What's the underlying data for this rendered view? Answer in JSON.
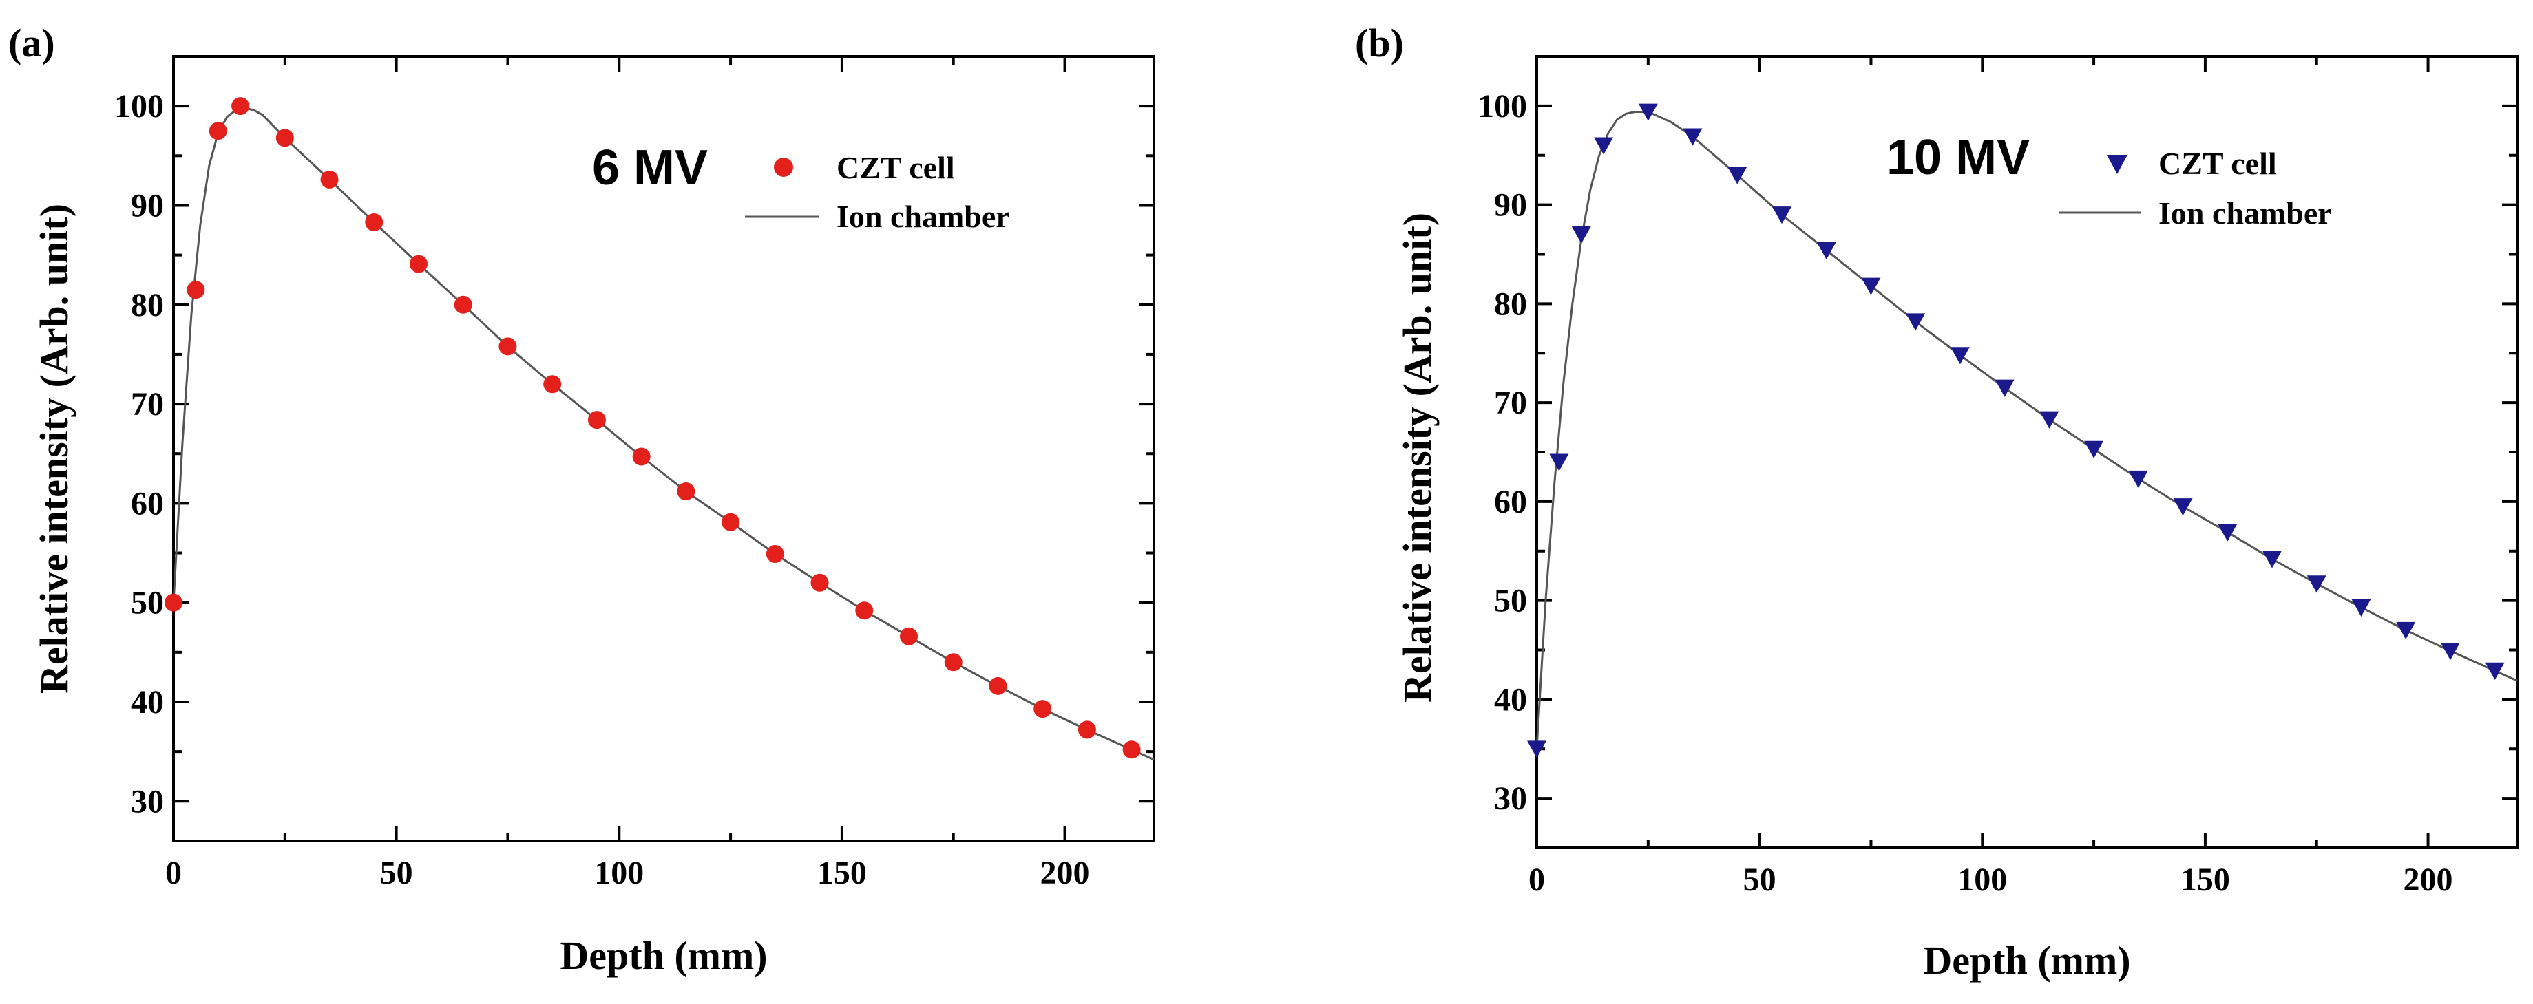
{
  "chart_data": [
    {
      "type": "scatter",
      "panel_label": "(a)",
      "annotation": "6 MV",
      "xlabel": "Depth (mm)",
      "ylabel": "Relative intensity (Arb. unit)",
      "xlim": [
        0,
        220
      ],
      "ylim": [
        26,
        105
      ],
      "xticks": [
        0,
        50,
        100,
        150,
        200
      ],
      "yticks": [
        30,
        40,
        50,
        60,
        70,
        80,
        90,
        100
      ],
      "grid": false,
      "legend_position": "top-right",
      "series": [
        {
          "name": "CZT cell",
          "kind": "markers",
          "marker": "circle",
          "color": "#e3201b",
          "x": [
            0,
            5,
            10,
            15,
            25,
            35,
            45,
            55,
            65,
            75,
            85,
            95,
            105,
            115,
            125,
            135,
            145,
            155,
            165,
            175,
            185,
            195,
            205,
            215
          ],
          "y": [
            50,
            81.5,
            97.5,
            100,
            96.8,
            92.6,
            88.3,
            84.1,
            80,
            75.8,
            72,
            68.4,
            64.7,
            61.2,
            58.1,
            54.9,
            52,
            49.2,
            46.6,
            44,
            41.6,
            39.3,
            37.2,
            35.2
          ]
        },
        {
          "name": "Ion chamber",
          "kind": "line",
          "color": "#555555",
          "x": [
            0,
            2,
            4,
            6,
            8,
            10,
            12,
            14,
            16,
            18,
            20,
            25,
            35,
            45,
            55,
            65,
            75,
            85,
            95,
            105,
            115,
            125,
            135,
            145,
            155,
            165,
            175,
            185,
            195,
            205,
            215,
            220
          ],
          "y": [
            50,
            66,
            79,
            88,
            94,
            97.3,
            98.9,
            99.6,
            99.8,
            99.6,
            99.1,
            96.8,
            92.6,
            88.3,
            84.1,
            80,
            75.8,
            72,
            68.4,
            64.7,
            61.2,
            58.1,
            54.9,
            52,
            49.2,
            46.6,
            44,
            41.6,
            39.3,
            37.2,
            35.2,
            34.2
          ]
        }
      ]
    },
    {
      "type": "scatter",
      "panel_label": "(b)",
      "annotation": "10 MV",
      "xlabel": "Depth (mm)",
      "ylabel": "Relative intensity (Arb. unit)",
      "xlim": [
        0,
        220
      ],
      "ylim": [
        25,
        105
      ],
      "xticks": [
        0,
        50,
        100,
        150,
        200
      ],
      "yticks": [
        30,
        40,
        50,
        60,
        70,
        80,
        90,
        100
      ],
      "grid": false,
      "legend_position": "top-right",
      "series": [
        {
          "name": "CZT cell",
          "kind": "markers",
          "marker": "triangle-down",
          "color": "#1a1a8c",
          "x": [
            0,
            5,
            10,
            15,
            25,
            35,
            45,
            55,
            65,
            75,
            85,
            95,
            105,
            115,
            125,
            135,
            145,
            155,
            165,
            175,
            185,
            195,
            205,
            215
          ],
          "y": [
            35,
            64,
            87,
            96,
            99.4,
            96.9,
            93,
            89,
            85.4,
            81.8,
            78.2,
            74.8,
            71.5,
            68.3,
            65.3,
            62.3,
            59.5,
            56.9,
            54.2,
            51.7,
            49.3,
            47,
            44.9,
            42.9
          ]
        },
        {
          "name": "Ion chamber",
          "kind": "line",
          "color": "#555555",
          "x": [
            0,
            2,
            4,
            6,
            8,
            10,
            12,
            14,
            16,
            18,
            20,
            22,
            25,
            30,
            35,
            45,
            55,
            65,
            75,
            85,
            95,
            105,
            115,
            125,
            135,
            145,
            155,
            165,
            175,
            185,
            195,
            205,
            215,
            220
          ],
          "y": [
            35,
            50,
            62,
            72,
            80,
            86.5,
            91.5,
            95,
            97.2,
            98.6,
            99.2,
            99.4,
            99.4,
            98.4,
            96.9,
            93,
            89,
            85.4,
            81.8,
            78.2,
            74.8,
            71.5,
            68.3,
            65.3,
            62.3,
            59.5,
            56.9,
            54.2,
            51.7,
            49.3,
            47,
            44.9,
            42.9,
            41.9
          ]
        }
      ]
    }
  ]
}
